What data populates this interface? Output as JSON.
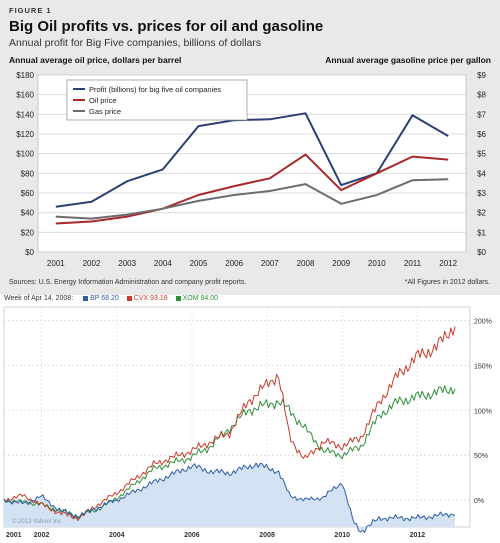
{
  "figure1": {
    "label": "FIGURE 1",
    "title": "Big Oil profits vs. prices for oil and gasoline",
    "subtitle": "Annual profit for Big Five companies, billions of dollars",
    "left_axis_title": "Annual average oil price, dollars per barrel",
    "right_axis_title": "Annual average gasoline price per gallon",
    "source": "Sources: U.S. Energy Information Administration and company profit reports.",
    "note": "*All Figures in 2012 dollars."
  },
  "figure2": {
    "week_label": "Week of Apr 14, 2008:",
    "watermark": "© 2013 Yahoo! Inc."
  },
  "chart_data": [
    {
      "type": "line",
      "title": "Big Oil profits vs. prices for oil and gasoline",
      "subtitle": "Annual profit for Big Five companies, billions of dollars",
      "x": [
        "2001",
        "2002",
        "2003",
        "2004",
        "2005",
        "2006",
        "2007",
        "2008",
        "2009",
        "2010",
        "2011",
        "2012"
      ],
      "y_left": {
        "label": "Annual average oil price, dollars per barrel",
        "range": [
          0,
          180
        ],
        "ticks": [
          0,
          20,
          40,
          60,
          80,
          100,
          120,
          140,
          160,
          180
        ],
        "tick_labels": [
          "$0",
          "$20",
          "$40",
          "$60",
          "$80",
          "$100",
          "$120",
          "$140",
          "$160",
          "$180"
        ]
      },
      "y_right": {
        "label": "Annual average gasoline price per gallon",
        "range": [
          0,
          9
        ],
        "ticks": [
          0,
          1,
          2,
          3,
          4,
          5,
          6,
          7,
          8,
          9
        ],
        "tick_labels": [
          "$0",
          "$1",
          "$2",
          "$3",
          "$4",
          "$5",
          "$6",
          "$7",
          "$8",
          "$9"
        ]
      },
      "grid": true,
      "legend_position": "top-left",
      "series": [
        {
          "name": "Profit (billions) for big five oil companies",
          "axis": "left",
          "color": "#2b3f72",
          "values": [
            46,
            51,
            72,
            84,
            128,
            134,
            135,
            141,
            68,
            80,
            139,
            118
          ]
        },
        {
          "name": "Oil price",
          "axis": "left",
          "color": "#a8282a",
          "values": [
            29,
            31,
            36,
            44,
            58,
            67,
            75,
            99,
            63,
            80,
            97,
            94
          ]
        },
        {
          "name": "Gas price",
          "axis": "right",
          "color": "#6d6d6d",
          "values": [
            1.8,
            1.7,
            1.9,
            2.2,
            2.6,
            2.9,
            3.1,
            3.45,
            2.45,
            2.9,
            3.65,
            3.7
          ]
        }
      ]
    },
    {
      "type": "line",
      "title": "",
      "x_ticks": [
        "2001",
        "2002",
        "2004",
        "2006",
        "2008",
        "2010",
        "2012"
      ],
      "y_right": {
        "range": [
          -30,
          215
        ],
        "ticks": [
          0,
          50,
          100,
          150,
          200
        ],
        "tick_labels": [
          "0%",
          "50%",
          "100%",
          "150%",
          "200%"
        ]
      },
      "grid": true,
      "legend_position": "top-left",
      "series": [
        {
          "name": "BP",
          "current_label": "68.20",
          "color": "#2e5fa3",
          "fill": "#d3e3f3",
          "x": [
            2001,
            2001.5,
            2002,
            2002.5,
            2003,
            2003.5,
            2004,
            2005,
            2006,
            2006.5,
            2007,
            2007.7,
            2008.3,
            2008.6,
            2009,
            2009.5,
            2010,
            2010.3,
            2010.5,
            2011,
            2012,
            2013
          ],
          "values": [
            0,
            -4,
            4,
            -12,
            -18,
            -8,
            0,
            20,
            38,
            32,
            30,
            40,
            32,
            5,
            0,
            3,
            20,
            -25,
            -35,
            -20,
            -20,
            -15
          ]
        },
        {
          "name": "CVX",
          "current_label": "93.18",
          "color": "#cc3a2a",
          "x": [
            2001,
            2001.5,
            2002,
            2002.5,
            2003,
            2003.5,
            2004,
            2005,
            2006,
            2006.5,
            2007,
            2007.5,
            2008.3,
            2008.6,
            2009,
            2009.5,
            2010,
            2010.5,
            2011,
            2011.5,
            2012,
            2012.5,
            2013
          ],
          "values": [
            0,
            5,
            -5,
            -15,
            -20,
            -5,
            8,
            40,
            55,
            65,
            75,
            110,
            140,
            70,
            45,
            65,
            60,
            70,
            110,
            140,
            160,
            170,
            195
          ]
        },
        {
          "name": "XOM",
          "current_label": "94.00",
          "color": "#2f8f3a",
          "x": [
            2001,
            2001.5,
            2002,
            2002.5,
            2003,
            2003.5,
            2004,
            2005,
            2006,
            2006.5,
            2007,
            2007.5,
            2008.3,
            2008.6,
            2009,
            2009.5,
            2010,
            2010.5,
            2011,
            2011.5,
            2012,
            2012.5,
            2013
          ],
          "values": [
            0,
            -2,
            -5,
            -12,
            -18,
            -10,
            2,
            35,
            48,
            60,
            80,
            100,
            110,
            100,
            80,
            55,
            50,
            60,
            95,
            110,
            115,
            120,
            125
          ]
        }
      ]
    }
  ]
}
